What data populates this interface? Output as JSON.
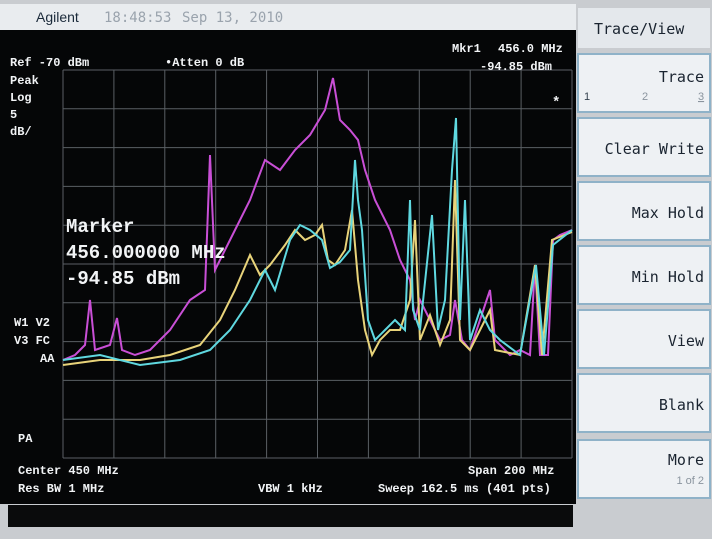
{
  "header": {
    "brand": "Agilent",
    "time": "18:48:53",
    "date": "Sep 13, 2010"
  },
  "display": {
    "ref": "Ref -70 dBm",
    "atten": "•Atten 0 dB",
    "marker_readout": {
      "label": "Mkr1",
      "frequency": "456.0 MHz",
      "amplitude": "-94.85 dBm"
    },
    "left_labels": [
      "Peak",
      "Log",
      "5",
      "dB/"
    ],
    "trace_labels": [
      "W1 V2",
      "V3 FC",
      "AA",
      "PA"
    ],
    "star": "*",
    "marker_box": {
      "title": "Marker",
      "frequency": "456.000000 MHz",
      "amplitude": "-94.85 dBm"
    },
    "footer": {
      "center": "Center 450 MHz",
      "res_bw": "Res BW 1 MHz",
      "vbw": "VBW 1 kHz",
      "span": "Span 200 MHz",
      "sweep": "Sweep 162.5 ms (401 pts)"
    }
  },
  "softkeys": {
    "title": "Trace/View",
    "trace": {
      "label": "Trace",
      "options": [
        "1",
        "2",
        "3"
      ]
    },
    "keys": [
      "Clear Write",
      "Max Hold",
      "Min Hold",
      "View",
      "Blank"
    ],
    "more": {
      "label": "More",
      "page": "1 of 2"
    }
  }
}
